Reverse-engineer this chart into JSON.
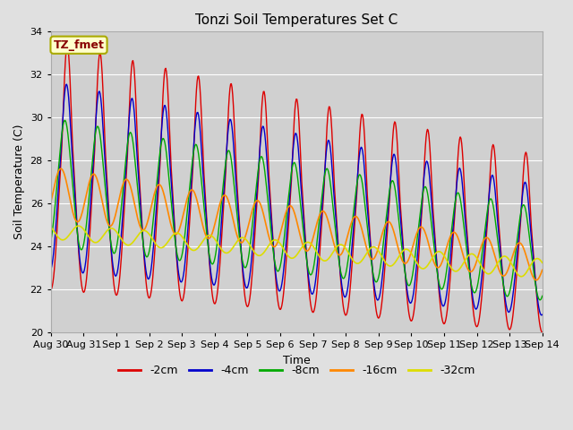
{
  "title": "Tonzi Soil Temperatures Set C",
  "xlabel": "Time",
  "ylabel": "Soil Temperature (C)",
  "ylim": [
    20,
    34
  ],
  "n_days": 15,
  "background_color": "#e0e0e0",
  "plot_bg_color": "#d0d0d0",
  "grid_color": "#ffffff",
  "annotation_text": "TZ_fmet",
  "annotation_bg": "#ffffcc",
  "annotation_border": "#aaaa00",
  "annotation_text_color": "#880000",
  "series": [
    {
      "label": "-2cm",
      "color": "#dd0000",
      "linewidth": 1.0
    },
    {
      "label": "-4cm",
      "color": "#0000cc",
      "linewidth": 1.0
    },
    {
      "label": "-8cm",
      "color": "#00aa00",
      "linewidth": 1.0
    },
    {
      "label": "-16cm",
      "color": "#ff8800",
      "linewidth": 1.2
    },
    {
      "label": "-32cm",
      "color": "#dddd00",
      "linewidth": 1.2
    }
  ],
  "x_tick_labels": [
    "Aug 30",
    "Aug 31",
    "Sep 1",
    "Sep 2",
    "Sep 3",
    "Sep 4",
    "Sep 5",
    "Sep 6",
    "Sep 7",
    "Sep 8",
    "Sep 9",
    "Sep 10",
    "Sep 11",
    "Sep 12",
    "Sep 13",
    "Sep 14"
  ],
  "yticks": [
    20,
    22,
    24,
    26,
    28,
    30,
    32,
    34
  ]
}
